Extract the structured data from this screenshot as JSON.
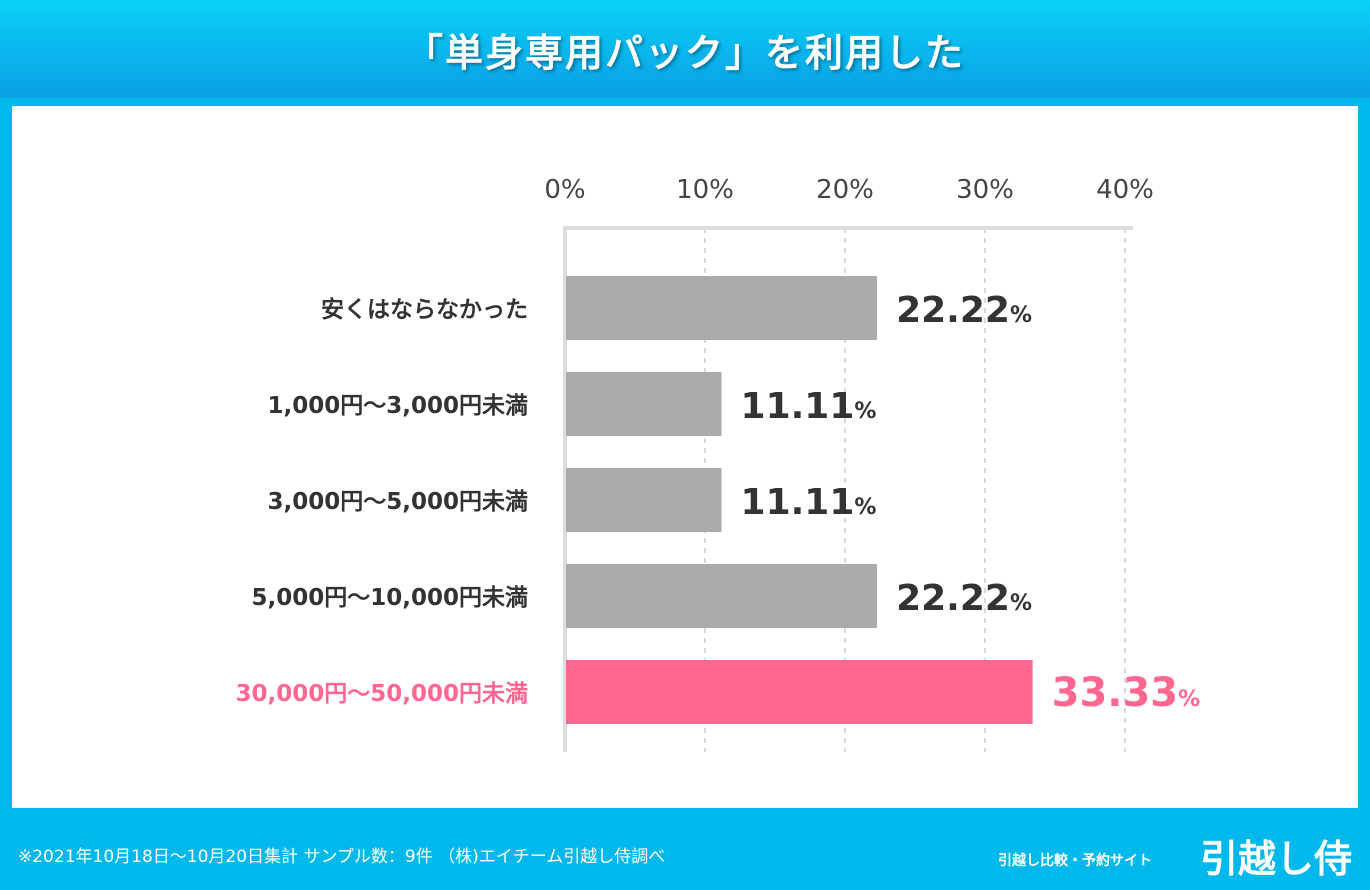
{
  "header": {
    "title": "「単身専用パック」を利用した"
  },
  "footer": {
    "note": "※2021年10月18日〜10月20日集計 サンプル数：9件 （株)エイチーム引越し侍調べ",
    "brand_sub": "引越し比較・予約サイト",
    "brand": "引越し侍"
  },
  "chart_data": {
    "type": "bar",
    "orientation": "horizontal",
    "categories": [
      "安くはならなかった",
      "1,000円〜3,000円未満",
      "3,000円〜5,000円未満",
      "5,000円〜10,000円未満",
      "30,000円〜50,000円未満"
    ],
    "values": [
      22.22,
      11.11,
      11.11,
      22.22,
      33.33
    ],
    "value_labels": [
      "22.22",
      "11.11",
      "11.11",
      "22.22",
      "33.33"
    ],
    "unit": "%",
    "xlim": [
      0,
      40
    ],
    "ticks": [
      "0%",
      "10%",
      "20%",
      "30%",
      "40%"
    ],
    "grid": true,
    "colors": {
      "default": "#aaaaaa",
      "highlight": "#ff6690",
      "text": "#333333"
    },
    "highlight_index": 4
  }
}
